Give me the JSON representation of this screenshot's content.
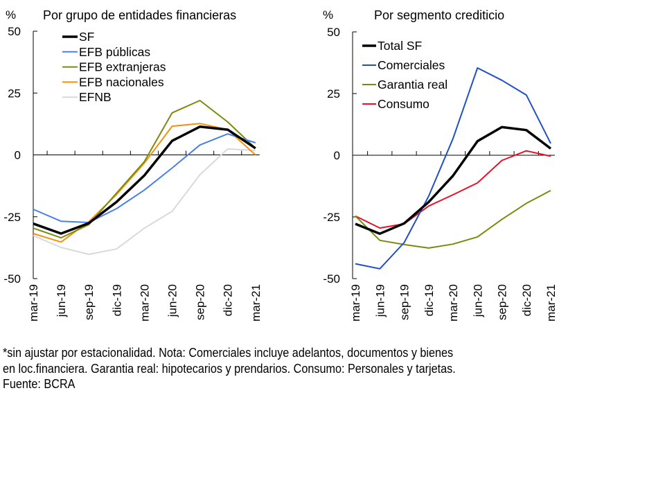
{
  "chart_data": [
    {
      "type": "line",
      "title": "Por grupo de entidades financieras",
      "ylabel": "%",
      "ylim": [
        -50,
        50
      ],
      "yticks": [
        50,
        25,
        0,
        -25,
        -50
      ],
      "categories": [
        "mar-19",
        "jun-19",
        "sep-19",
        "dic-19",
        "mar-20",
        "jun-20",
        "sep-20",
        "dic-20",
        "mar-21"
      ],
      "legend": "top-left",
      "grid": false,
      "series": [
        {
          "name": "SF",
          "color": "#000000",
          "width": 3.5,
          "values": [
            -27.8,
            -31.8,
            -27.6,
            -19,
            -8.3,
            5.7,
            11.4,
            10.2,
            2.7
          ]
        },
        {
          "name": "EFB públicas",
          "color": "#4a7fe8",
          "width": 2,
          "values": [
            -22,
            -26.8,
            -27.3,
            -21.7,
            -14.2,
            -5.3,
            4.0,
            8.5,
            4.9
          ]
        },
        {
          "name": "EFB extranjeras",
          "color": "#7a8a0a",
          "width": 2,
          "values": [
            -29.6,
            -33.5,
            -28.2,
            -15.4,
            -2.7,
            17,
            22,
            13.3,
            2.7
          ]
        },
        {
          "name": "EFB nacionales",
          "color": "#f5900f",
          "width": 2,
          "values": [
            -31.8,
            -35.2,
            -27,
            -16,
            -3.3,
            11.6,
            12.7,
            10.2,
            0
          ]
        },
        {
          "name": "EFNB",
          "color": "#d9d9d9",
          "width": 2,
          "values": [
            -32.6,
            -37.4,
            -40.2,
            -38,
            -29.6,
            -22.8,
            -8,
            2.4,
            1.8
          ]
        }
      ]
    },
    {
      "type": "line",
      "title": "Por segmento crediticio",
      "ylabel": "%",
      "ylim": [
        -50,
        50
      ],
      "yticks": [
        50,
        25,
        0,
        -25,
        -50
      ],
      "categories": [
        "mar-19",
        "jun-19",
        "sep-19",
        "dic-19",
        "mar-20",
        "jun-20",
        "sep-20",
        "dic-20",
        "mar-21"
      ],
      "legend": "top-left",
      "grid": false,
      "series": [
        {
          "name": "Total SF",
          "color": "#000000",
          "width": 3.5,
          "values": [
            -27.8,
            -31.8,
            -27.6,
            -19,
            -8.3,
            5.7,
            11.4,
            10.2,
            2.7
          ]
        },
        {
          "name": "Comerciales",
          "color": "#1f4fc4",
          "width": 2,
          "values": [
            -44,
            -46,
            -35.4,
            -16.6,
            6.8,
            35.4,
            30.4,
            24.4,
            4.8
          ]
        },
        {
          "name": "Garantia real",
          "color": "#7a8a0a",
          "width": 2,
          "values": [
            -24.6,
            -34.5,
            -36.2,
            -37.6,
            -36,
            -33.1,
            -26,
            -19.5,
            -14.3
          ]
        },
        {
          "name": "Consumo",
          "color": "#e8102a",
          "width": 2,
          "values": [
            -24.6,
            -29.5,
            -27.8,
            -20.6,
            -16,
            -11.2,
            -2.1,
            1.8,
            -0.4
          ]
        }
      ]
    }
  ],
  "footnote": [
    "*sin ajustar por estacionalidad. Nota: Comerciales incluye adelantos, documentos y bienes",
    "en loc.financiera. Garantia real: hipotecarios y prendarios. Consumo: Personales y tarjetas.",
    "Fuente: BCRA"
  ]
}
